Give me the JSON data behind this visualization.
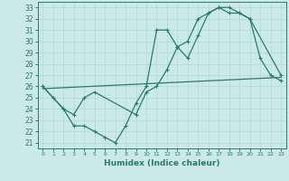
{
  "xlabel": "Humidex (Indice chaleur)",
  "bg_color": "#cce9e9",
  "grid_color": "#b0d8d8",
  "line_color": "#2a7a6a",
  "xlim": [
    -0.5,
    23.5
  ],
  "ylim": [
    20.5,
    33.5
  ],
  "yticks": [
    21,
    22,
    23,
    24,
    25,
    26,
    27,
    28,
    29,
    30,
    31,
    32,
    33
  ],
  "xticks": [
    0,
    1,
    2,
    3,
    4,
    5,
    6,
    7,
    8,
    9,
    10,
    11,
    12,
    13,
    14,
    15,
    16,
    17,
    18,
    19,
    20,
    21,
    22,
    23
  ],
  "line1_x": [
    0,
    1,
    2,
    3,
    4,
    5,
    6,
    7,
    8,
    9,
    10,
    11,
    12,
    13,
    14,
    15,
    16,
    17,
    18,
    19,
    20,
    21,
    22,
    23
  ],
  "line1_y": [
    26,
    25,
    24,
    22.5,
    22.5,
    22,
    21.5,
    21,
    22.5,
    24.5,
    26,
    31,
    31,
    29.5,
    28.5,
    30.5,
    32.5,
    33,
    32.5,
    32.5,
    32,
    28.5,
    27,
    26.5
  ],
  "line2_x": [
    0,
    2,
    3,
    4,
    5,
    9,
    10,
    11,
    12,
    13,
    14,
    15,
    16,
    17,
    18,
    19,
    20,
    23
  ],
  "line2_y": [
    26,
    24,
    23.5,
    25,
    25.5,
    23.5,
    25.5,
    26,
    27.5,
    29.5,
    30,
    32,
    32.5,
    33,
    33,
    32.5,
    32,
    27
  ],
  "line3_x": [
    0,
    23
  ],
  "line3_y": [
    25.8,
    26.8
  ]
}
